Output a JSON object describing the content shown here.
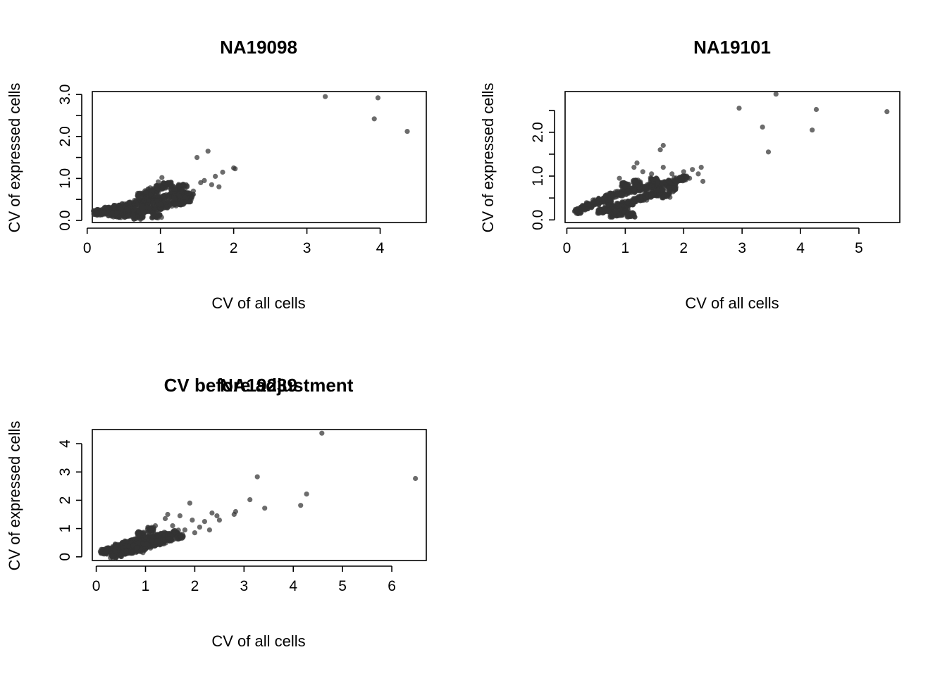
{
  "colors": {
    "points": "#333333",
    "point_opacity": 0.72,
    "axes": "#000000"
  },
  "chart_data": [
    {
      "type": "scatter",
      "title": "NA19098",
      "xlabel": "CV of all cells",
      "ylabel": "CV of expressed cells",
      "xticks": [
        0,
        1,
        2,
        3,
        4
      ],
      "yticks": [
        0.0,
        0.5,
        1.0,
        1.5,
        2.0,
        2.5,
        3.0
      ],
      "yticklabels": [
        "0.0",
        "",
        "1.0",
        "",
        "2.0",
        "",
        "3.0"
      ],
      "xlim": [
        0.07,
        4.63
      ],
      "ylim": [
        -0.05,
        3.07
      ],
      "cloud": [
        [
          0.15,
          0.18
        ],
        [
          0.2,
          0.2
        ],
        [
          0.3,
          0.26
        ],
        [
          0.4,
          0.3
        ],
        [
          0.5,
          0.34
        ],
        [
          0.6,
          0.38
        ],
        [
          0.7,
          0.42
        ],
        [
          0.8,
          0.46
        ],
        [
          0.9,
          0.5
        ],
        [
          1.0,
          0.53
        ],
        [
          1.1,
          0.57
        ],
        [
          1.2,
          0.61
        ],
        [
          1.3,
          0.64
        ],
        [
          0.45,
          0.12
        ],
        [
          0.55,
          0.15
        ],
        [
          0.65,
          0.18
        ],
        [
          0.75,
          0.22
        ],
        [
          0.85,
          0.26
        ],
        [
          0.95,
          0.3
        ],
        [
          1.05,
          0.35
        ],
        [
          1.15,
          0.39
        ],
        [
          1.25,
          0.43
        ],
        [
          1.35,
          0.47
        ],
        [
          0.6,
          0.28
        ],
        [
          0.8,
          0.34
        ],
        [
          1.0,
          0.42
        ],
        [
          0.9,
          0.72
        ],
        [
          1.0,
          0.8
        ],
        [
          1.1,
          0.85
        ],
        [
          0.75,
          0.6
        ],
        [
          0.85,
          0.65
        ],
        [
          0.95,
          0.12
        ],
        [
          0.7,
          0.08
        ],
        [
          0.5,
          0.24
        ],
        [
          0.4,
          0.2
        ],
        [
          0.35,
          0.14
        ],
        [
          1.2,
          0.75
        ],
        [
          1.3,
          0.8
        ],
        [
          1.25,
          0.52
        ],
        [
          1.4,
          0.6
        ]
      ],
      "points": [
        [
          0.55,
          0.1
        ],
        [
          0.63,
          0.12
        ],
        [
          0.75,
          0.35
        ],
        [
          0.9,
          0.42
        ],
        [
          0.97,
          0.92
        ],
        [
          1.02,
          1.02
        ],
        [
          1.1,
          0.9
        ],
        [
          1.2,
          0.75
        ],
        [
          1.25,
          0.62
        ],
        [
          1.35,
          0.85
        ],
        [
          1.42,
          0.5
        ],
        [
          1.45,
          0.7
        ],
        [
          1.5,
          1.5
        ],
        [
          1.55,
          0.9
        ],
        [
          1.6,
          0.95
        ],
        [
          1.65,
          1.65
        ],
        [
          1.7,
          0.85
        ],
        [
          1.75,
          1.05
        ],
        [
          1.8,
          0.8
        ],
        [
          1.85,
          1.15
        ],
        [
          2.0,
          1.25
        ],
        [
          2.02,
          1.23
        ],
        [
          3.25,
          2.95
        ],
        [
          3.92,
          2.42
        ],
        [
          3.97,
          2.92
        ],
        [
          4.37,
          2.12
        ]
      ]
    },
    {
      "type": "scatter",
      "title": "NA19101",
      "xlabel": "CV of all cells",
      "ylabel": "CV of expressed cells",
      "xticks": [
        0,
        1,
        2,
        3,
        4,
        5
      ],
      "yticks": [
        0.0,
        0.5,
        1.0,
        1.5,
        2.0,
        2.5
      ],
      "yticklabels": [
        "0.0",
        "",
        "1.0",
        "",
        "2.0",
        ""
      ],
      "xlim": [
        -0.03,
        5.7
      ],
      "ylim": [
        -0.06,
        2.93
      ],
      "cloud": [
        [
          0.2,
          0.2
        ],
        [
          0.3,
          0.28
        ],
        [
          0.4,
          0.34
        ],
        [
          0.5,
          0.4
        ],
        [
          0.6,
          0.46
        ],
        [
          0.7,
          0.52
        ],
        [
          0.8,
          0.56
        ],
        [
          0.9,
          0.6
        ],
        [
          1.0,
          0.64
        ],
        [
          1.1,
          0.68
        ],
        [
          1.2,
          0.72
        ],
        [
          1.3,
          0.74
        ],
        [
          1.4,
          0.76
        ],
        [
          1.5,
          0.78
        ],
        [
          1.6,
          0.8
        ],
        [
          1.7,
          0.82
        ],
        [
          0.6,
          0.2
        ],
        [
          0.7,
          0.24
        ],
        [
          0.8,
          0.28
        ],
        [
          0.9,
          0.32
        ],
        [
          1.0,
          0.36
        ],
        [
          1.1,
          0.4
        ],
        [
          1.2,
          0.46
        ],
        [
          1.3,
          0.5
        ],
        [
          1.4,
          0.55
        ],
        [
          1.5,
          0.6
        ],
        [
          1.6,
          0.65
        ],
        [
          0.8,
          0.12
        ],
        [
          0.9,
          0.15
        ],
        [
          1.0,
          0.2
        ],
        [
          0.7,
          0.4
        ],
        [
          1.0,
          0.8
        ],
        [
          1.2,
          0.85
        ],
        [
          1.5,
          0.9
        ],
        [
          1.8,
          0.85
        ],
        [
          1.9,
          0.92
        ],
        [
          2.0,
          0.95
        ],
        [
          1.1,
          0.12
        ],
        [
          1.7,
          0.55
        ],
        [
          1.8,
          0.7
        ]
      ],
      "points": [
        [
          0.35,
          0.25
        ],
        [
          0.55,
          0.15
        ],
        [
          0.9,
          0.95
        ],
        [
          1.15,
          1.2
        ],
        [
          1.2,
          1.3
        ],
        [
          1.3,
          1.1
        ],
        [
          1.45,
          1.05
        ],
        [
          1.6,
          1.6
        ],
        [
          1.65,
          1.7
        ],
        [
          1.65,
          1.2
        ],
        [
          1.8,
          1.05
        ],
        [
          2.0,
          1.1
        ],
        [
          2.1,
          0.95
        ],
        [
          2.15,
          1.15
        ],
        [
          2.25,
          1.05
        ],
        [
          2.3,
          1.2
        ],
        [
          2.33,
          0.88
        ],
        [
          2.95,
          2.55
        ],
        [
          3.35,
          2.12
        ],
        [
          3.45,
          1.55
        ],
        [
          3.58,
          2.87
        ],
        [
          4.2,
          2.05
        ],
        [
          4.27,
          2.52
        ],
        [
          5.48,
          2.47
        ]
      ]
    },
    {
      "type": "scatter",
      "title": "NA19239",
      "overlay_title": "CV before adjustment",
      "xlabel": "CV of all cells",
      "ylabel": "CV of expressed cells",
      "xticks": [
        0,
        1,
        2,
        3,
        4,
        5,
        6
      ],
      "yticks": [
        0,
        1,
        2,
        3,
        4
      ],
      "yticklabels": [
        "0",
        "1",
        "2",
        "3",
        "4"
      ],
      "xlim": [
        -0.08,
        6.7
      ],
      "ylim": [
        -0.13,
        4.5
      ],
      "cloud": [
        [
          0.15,
          0.18
        ],
        [
          0.25,
          0.24
        ],
        [
          0.35,
          0.3
        ],
        [
          0.45,
          0.36
        ],
        [
          0.55,
          0.42
        ],
        [
          0.65,
          0.48
        ],
        [
          0.75,
          0.52
        ],
        [
          0.85,
          0.56
        ],
        [
          0.95,
          0.6
        ],
        [
          1.05,
          0.64
        ],
        [
          1.15,
          0.68
        ],
        [
          1.25,
          0.72
        ],
        [
          1.35,
          0.75
        ],
        [
          1.45,
          0.78
        ],
        [
          0.35,
          0.05
        ],
        [
          0.45,
          0.1
        ],
        [
          0.55,
          0.14
        ],
        [
          0.65,
          0.18
        ],
        [
          0.75,
          0.22
        ],
        [
          0.85,
          0.27
        ],
        [
          0.95,
          0.32
        ],
        [
          1.05,
          0.38
        ],
        [
          1.15,
          0.44
        ],
        [
          1.25,
          0.5
        ],
        [
          1.35,
          0.55
        ],
        [
          0.6,
          0.3
        ],
        [
          0.8,
          0.4
        ],
        [
          1.0,
          0.5
        ],
        [
          0.9,
          0.8
        ],
        [
          1.1,
          0.95
        ],
        [
          1.2,
          0.6
        ],
        [
          1.5,
          0.65
        ],
        [
          1.6,
          0.85
        ],
        [
          1.7,
          0.7
        ]
      ],
      "points": [
        [
          0.35,
          0.05
        ],
        [
          0.95,
          0.15
        ],
        [
          1.2,
          1.1
        ],
        [
          1.4,
          1.35
        ],
        [
          1.45,
          1.5
        ],
        [
          1.55,
          1.1
        ],
        [
          1.7,
          1.45
        ],
        [
          1.8,
          0.95
        ],
        [
          1.9,
          1.9
        ],
        [
          1.95,
          1.3
        ],
        [
          2.0,
          0.85
        ],
        [
          2.1,
          1.05
        ],
        [
          2.2,
          1.25
        ],
        [
          2.3,
          0.95
        ],
        [
          2.35,
          1.55
        ],
        [
          2.45,
          1.45
        ],
        [
          2.5,
          1.3
        ],
        [
          2.8,
          1.5
        ],
        [
          2.83,
          1.6
        ],
        [
          3.12,
          2.02
        ],
        [
          3.27,
          2.83
        ],
        [
          3.42,
          1.72
        ],
        [
          4.15,
          1.82
        ],
        [
          4.27,
          2.22
        ],
        [
          4.58,
          4.37
        ],
        [
          6.48,
          2.77
        ]
      ]
    }
  ]
}
